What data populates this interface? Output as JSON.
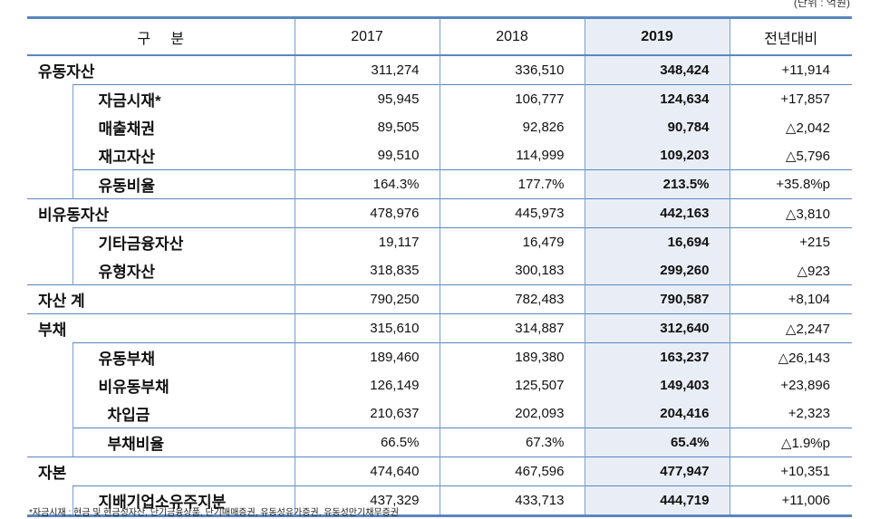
{
  "unit": "(단위 : 억원)",
  "headers": {
    "category": "구     분",
    "y2017": "2017",
    "y2018": "2018",
    "y2019": "2019",
    "yoy": "전년대비"
  },
  "rows": [
    {
      "label": "유동자산",
      "level": 0,
      "top": true,
      "v2017": "311,274",
      "v2018": "336,510",
      "v2019": "348,424",
      "yoy": "+11,914"
    },
    {
      "label": "자금시재*",
      "level": 1,
      "top": true,
      "v2017": "95,945",
      "v2018": "106,777",
      "v2019": "124,634",
      "yoy": "+17,857"
    },
    {
      "label": "매출채권",
      "level": 1,
      "top": false,
      "v2017": "89,505",
      "v2018": "92,826",
      "v2019": "90,784",
      "yoy": "△2,042"
    },
    {
      "label": "재고자산",
      "level": 1,
      "top": false,
      "v2017": "99,510",
      "v2018": "114,999",
      "v2019": "109,203",
      "yoy": "△5,796"
    },
    {
      "label": "유동비율",
      "level": 1,
      "top": true,
      "v2017": "164.3%",
      "v2018": "177.7%",
      "v2019": "213.5%",
      "yoy": "+35.8%p"
    },
    {
      "label": "비유동자산",
      "level": 0,
      "top": true,
      "v2017": "478,976",
      "v2018": "445,973",
      "v2019": "442,163",
      "yoy": "△3,810"
    },
    {
      "label": "기타금융자산",
      "level": 1,
      "top": true,
      "v2017": "19,117",
      "v2018": "16,479",
      "v2019": "16,694",
      "yoy": "+215"
    },
    {
      "label": "유형자산",
      "level": 1,
      "top": false,
      "v2017": "318,835",
      "v2018": "300,183",
      "v2019": "299,260",
      "yoy": "△923"
    },
    {
      "label": "자산 계",
      "level": 0,
      "top": true,
      "v2017": "790,250",
      "v2018": "782,483",
      "v2019": "790,587",
      "yoy": "+8,104"
    },
    {
      "label": "부채",
      "level": 0,
      "top": true,
      "v2017": "315,610",
      "v2018": "314,887",
      "v2019": "312,640",
      "yoy": "△2,247"
    },
    {
      "label": "유동부채",
      "level": 1,
      "top": true,
      "v2017": "189,460",
      "v2018": "189,380",
      "v2019": "163,237",
      "yoy": "△26,143"
    },
    {
      "label": "비유동부채",
      "level": 1,
      "top": false,
      "v2017": "126,149",
      "v2018": "125,507",
      "v2019": "149,403",
      "yoy": "+23,896"
    },
    {
      "label": "차입금",
      "level": 2,
      "top": false,
      "v2017": "210,637",
      "v2018": "202,093",
      "v2019": "204,416",
      "yoy": "+2,323"
    },
    {
      "label": "부채비율",
      "level": 2,
      "top": true,
      "v2017": "66.5%",
      "v2018": "67.3%",
      "v2019": "65.4%",
      "yoy": "△1.9%p"
    },
    {
      "label": "자본",
      "level": 0,
      "top": true,
      "v2017": "474,640",
      "v2018": "467,596",
      "v2019": "477,947",
      "yoy": "+10,351"
    },
    {
      "label": "지배기업소유주지분",
      "level": 1,
      "top": true,
      "v2017": "437,329",
      "v2018": "433,713",
      "v2019": "444,719",
      "yoy": "+11,006"
    }
  ],
  "footnote": "*자금시재 : 현금 및 현금성자산, 단기금융상품, 단기매매증권, 유동성유가증권, 유동성만기채무증권",
  "colors": {
    "line": "#5a86c0",
    "highlight": "#e9eef6"
  }
}
